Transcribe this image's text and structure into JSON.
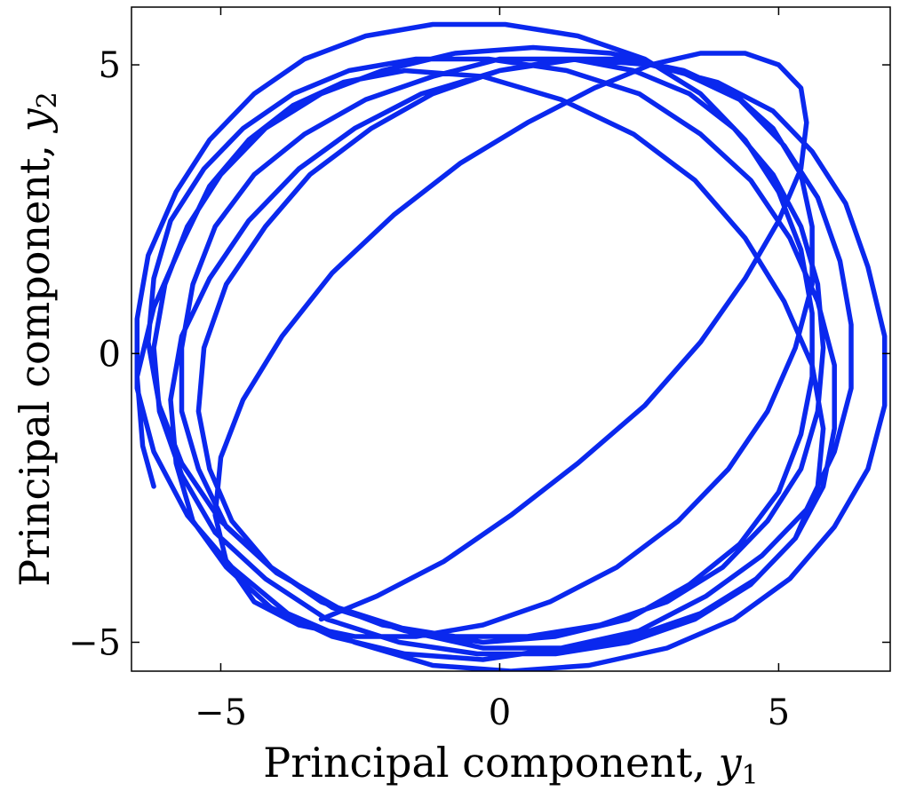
{
  "chart_data": {
    "type": "line",
    "title": "",
    "xlabel": {
      "text": "Principal component, ",
      "var": "y",
      "sub": "1"
    },
    "ylabel": {
      "text": "Principal component, ",
      "var": "y",
      "sub": "2"
    },
    "xlim": [
      -6.6,
      7.0
    ],
    "ylim": [
      -5.5,
      6.0
    ],
    "xticks": [
      -5,
      0,
      5
    ],
    "yticks": [
      -5,
      0,
      5
    ],
    "xtick_labels": [
      "−5",
      "0",
      "5"
    ],
    "ytick_labels": [
      "−5",
      "0",
      "5"
    ],
    "grid": false,
    "legend": null,
    "line_color": "#0a28ee",
    "series": [
      {
        "name": "",
        "x": [
          -6.2,
          -6.4,
          -6.5,
          -6.2,
          -5.7,
          -5.2,
          -4.5,
          -3.7,
          -2.8,
          -1.7,
          -0.3,
          1.1,
          2.4,
          3.5,
          4.4,
          5.1,
          5.6,
          5.8,
          5.7,
          5.3,
          4.6,
          3.6,
          2.4,
          1.1,
          -0.3,
          -1.7,
          -3.0,
          -4.1,
          -5.0,
          -5.7,
          -6.1,
          -6.3,
          -6.2,
          -5.9,
          -5.3,
          -4.6,
          -3.7,
          -2.7,
          -1.5,
          -0.2,
          1.2,
          2.5,
          3.6,
          4.5,
          5.2,
          5.7,
          6.0,
          6.0,
          5.8,
          5.3,
          4.5,
          3.5,
          2.3,
          1.0,
          -0.4,
          -1.8,
          -3.1,
          -4.2,
          -5.1,
          -5.7,
          -6.1,
          -6.2,
          -6.0,
          -5.6,
          -5.0,
          -4.2,
          -3.2,
          -2.1,
          -0.8,
          0.6,
          2.0,
          3.2,
          4.3,
          5.1,
          5.7,
          6.1,
          6.3,
          6.3,
          6.0,
          5.5,
          4.7,
          3.7,
          2.5,
          1.1,
          -0.3,
          -1.7,
          -3.0,
          -4.1,
          -4.9,
          -5.5,
          -5.8,
          -5.9,
          -5.7,
          -5.2,
          -4.5,
          -3.6,
          -2.6,
          -1.4,
          0.0,
          1.4,
          2.7,
          3.9,
          4.9,
          5.6,
          6.2,
          6.6,
          6.9,
          6.9,
          6.6,
          6.0,
          5.2,
          4.2,
          3.0,
          1.6,
          0.2,
          -1.2,
          -2.6,
          -3.8,
          -4.8,
          -5.6,
          -6.2,
          -6.5,
          -6.5,
          -6.3,
          -5.8,
          -5.2,
          -4.4,
          -3.5,
          -2.4,
          -1.2,
          0.1,
          1.4,
          2.6,
          3.6,
          4.4,
          5.0,
          5.4,
          5.6,
          5.6,
          5.4,
          5.0,
          4.3,
          3.4,
          2.3,
          1.0,
          -0.3,
          -1.6,
          -2.9,
          -4.0,
          -4.9,
          -5.4,
          -5.7,
          -5.7,
          -5.5,
          -5.1,
          -4.4,
          -3.5,
          -2.4,
          -1.2,
          0.0,
          1.3,
          2.4,
          3.4,
          4.2,
          4.9,
          5.4,
          5.7,
          5.8,
          5.7,
          5.4,
          4.8,
          4.0,
          3.0,
          1.8,
          0.5,
          -0.8,
          -2.1,
          -3.2,
          -4.1,
          -4.8,
          -5.2,
          -5.4,
          -5.3,
          -4.9,
          -4.2,
          -3.4,
          -2.3,
          -1.2,
          0.0,
          1.2,
          2.3,
          3.3,
          4.2,
          4.9,
          5.4,
          5.6,
          5.6,
          5.3,
          4.8,
          4.1,
          3.2,
          2.1,
          0.9,
          -0.3,
          -1.5,
          -2.6,
          -3.6,
          -4.4,
          -4.9,
          -5.1,
          -5.0,
          -4.6,
          -3.9,
          -3.0,
          -1.9,
          -0.7,
          0.5,
          1.7,
          2.7,
          3.6,
          4.4,
          5.0,
          5.4,
          5.5,
          5.4,
          5.0,
          4.4,
          3.6,
          2.6,
          1.4,
          0.2,
          -1.0,
          -2.2,
          -3.2
        ],
        "y": [
          -2.3,
          -1.6,
          -0.4,
          0.8,
          1.9,
          2.9,
          3.7,
          4.3,
          4.7,
          4.9,
          4.8,
          4.4,
          3.8,
          3.0,
          2.0,
          0.9,
          -0.2,
          -1.3,
          -2.3,
          -3.2,
          -3.9,
          -4.5,
          -4.9,
          -5.1,
          -5.1,
          -4.8,
          -4.4,
          -3.7,
          -2.9,
          -1.9,
          -0.9,
          0.2,
          1.3,
          2.3,
          3.2,
          3.9,
          4.5,
          4.9,
          5.1,
          5.1,
          4.9,
          4.5,
          3.8,
          3.0,
          2.0,
          0.9,
          -0.2,
          -1.3,
          -2.3,
          -3.2,
          -4.0,
          -4.6,
          -5.0,
          -5.2,
          -5.2,
          -5.0,
          -4.6,
          -3.9,
          -3.1,
          -2.1,
          -1.0,
          0.1,
          1.2,
          2.2,
          3.1,
          3.9,
          4.5,
          4.9,
          5.2,
          5.3,
          5.2,
          4.9,
          4.4,
          3.6,
          2.7,
          1.6,
          0.5,
          -0.6,
          -1.7,
          -2.7,
          -3.5,
          -4.2,
          -4.8,
          -5.1,
          -5.3,
          -5.2,
          -4.9,
          -4.4,
          -3.7,
          -2.9,
          -1.9,
          -0.8,
          0.3,
          1.3,
          2.3,
          3.2,
          3.9,
          4.5,
          4.9,
          5.1,
          5.0,
          4.7,
          4.2,
          3.5,
          2.6,
          1.5,
          0.3,
          -0.9,
          -2.0,
          -3.0,
          -3.9,
          -4.6,
          -5.1,
          -5.4,
          -5.5,
          -5.4,
          -5.0,
          -4.5,
          -3.7,
          -2.8,
          -1.7,
          -0.6,
          0.6,
          1.7,
          2.8,
          3.7,
          4.5,
          5.1,
          5.5,
          5.7,
          5.7,
          5.5,
          5.1,
          4.5,
          3.7,
          2.8,
          1.8,
          0.7,
          -0.4,
          -1.4,
          -2.4,
          -3.3,
          -4.0,
          -4.6,
          -4.9,
          -5.0,
          -4.8,
          -4.4,
          -3.8,
          -3.0,
          -2.0,
          -1.0,
          0.1,
          1.2,
          2.2,
          3.1,
          3.8,
          4.4,
          4.8,
          5.1,
          5.1,
          4.9,
          4.5,
          3.9,
          3.1,
          2.2,
          1.2,
          0.1,
          -1.0,
          -2.0,
          -2.9,
          -3.7,
          -4.3,
          -4.7,
          -4.9,
          -4.9,
          -4.7,
          -4.3,
          -3.7,
          -2.9,
          -2.0,
          -1.0,
          0.1,
          1.2,
          2.2,
          3.1,
          3.9,
          4.5,
          4.9,
          5.1,
          5.1,
          4.9,
          4.5,
          3.9,
          3.1,
          2.2,
          1.2,
          0.1,
          -1.0,
          -2.0,
          -2.9,
          -3.7,
          -4.3,
          -4.7,
          -4.9,
          -4.9,
          -4.7,
          -4.3,
          -3.6,
          -2.8,
          -1.8,
          -0.8,
          0.3,
          1.4,
          2.4,
          3.3,
          4.0,
          4.6,
          5.0,
          5.2,
          5.2,
          5.0,
          4.6,
          4.0,
          3.2,
          2.3,
          1.3,
          0.2,
          -0.9,
          -1.9,
          -2.8,
          -3.6,
          -4.2,
          -4.6
        ]
      }
    ]
  }
}
